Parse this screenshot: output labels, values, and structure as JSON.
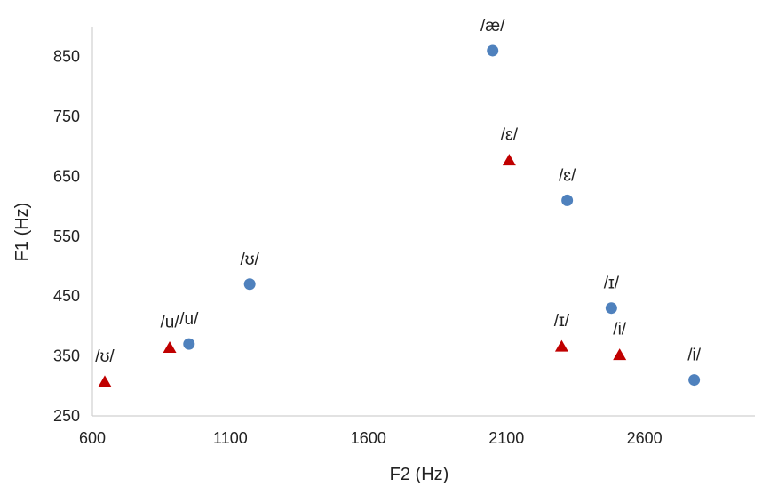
{
  "chart_data": {
    "type": "scatter",
    "title": "",
    "xlabel": "F2 (Hz)",
    "ylabel": "F1 (Hz)",
    "xlim": [
      600,
      3000
    ],
    "ylim": [
      250,
      900
    ],
    "x_ticks": [
      600,
      1100,
      1600,
      2100,
      2600
    ],
    "y_ticks": [
      250,
      350,
      450,
      550,
      650,
      750,
      850
    ],
    "grid": false,
    "legend": "none",
    "series": [
      {
        "marker": "circle",
        "color": "#4F81BD",
        "points": [
          {
            "label": "/æ/",
            "x": 2050,
            "y": 860
          },
          {
            "label": "/ɛ/",
            "x": 2320,
            "y": 610
          },
          {
            "label": "/ʊ/",
            "x": 1170,
            "y": 470
          },
          {
            "label": "/ɪ/",
            "x": 2480,
            "y": 430
          },
          {
            "label": "/u/",
            "x": 950,
            "y": 370
          },
          {
            "label": "/i/",
            "x": 2780,
            "y": 310
          }
        ]
      },
      {
        "marker": "triangle",
        "color": "#C00000",
        "points": [
          {
            "label": "/ɛ/",
            "x": 2110,
            "y": 678
          },
          {
            "label": "/u/",
            "x": 880,
            "y": 365
          },
          {
            "label": "/ɪ/",
            "x": 2300,
            "y": 367
          },
          {
            "label": "/i/",
            "x": 2510,
            "y": 353
          },
          {
            "label": "/ʊ/",
            "x": 645,
            "y": 308
          }
        ]
      }
    ]
  }
}
